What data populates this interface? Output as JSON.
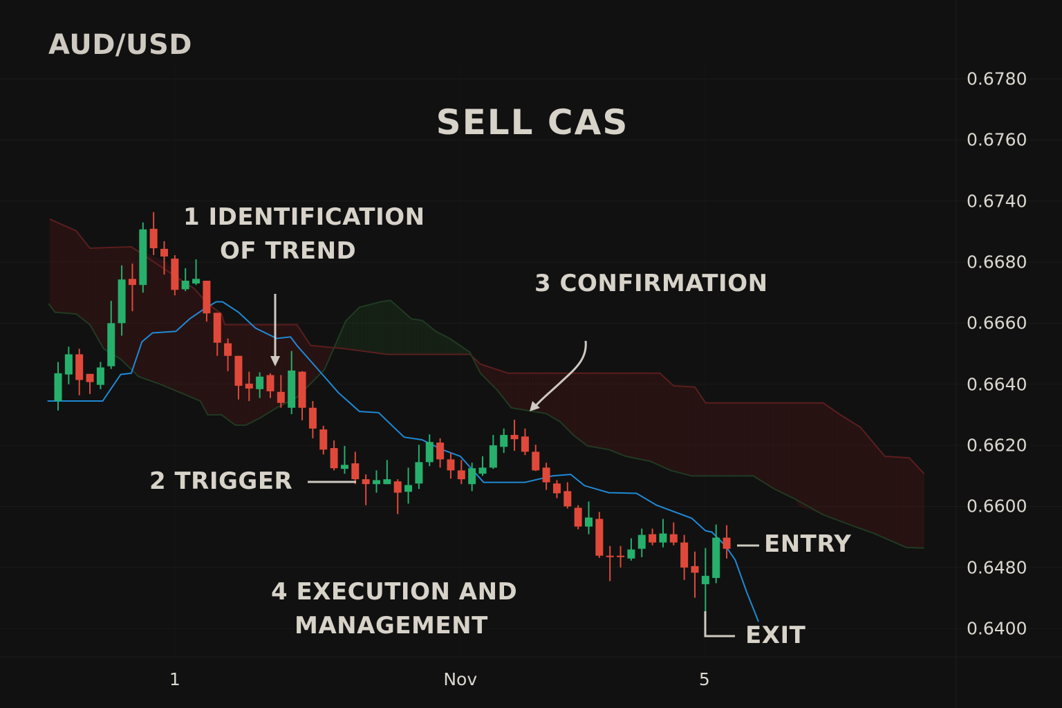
{
  "header": {
    "symbol": "AUD/USD",
    "headline": "SELL CAS"
  },
  "annotations": {
    "identification_line1": "1 IDENTIFICATION",
    "identification_line2": "OF TREND",
    "trigger": "2  TRIGGER",
    "confirmation": "3  CONFIRMATION",
    "execution_line1": "4  EXECUTION AND",
    "execution_line2": "MANAGEMENT",
    "entry": "ENTRY",
    "exit": "EXIT"
  },
  "colors": {
    "background": "#111111",
    "bullish": "#26b06c",
    "bearish": "#e0493a",
    "baseline": "#1f8ad6",
    "cloud_upper_line": "#5c1e1e",
    "cloud_lower_line": "#203b22",
    "text": "#d4cfc5"
  },
  "chart_data": {
    "type": "candlestick",
    "title": "AUD/USD",
    "y_axis": {
      "position": "right",
      "tick_labels": [
        "0.6780",
        "0.6760",
        "0.6740",
        "0.6680",
        "0.6660",
        "0.6640",
        "0.6620",
        "0.6600",
        "0.6480",
        "0.6400"
      ]
    },
    "x_axis": {
      "tick_labels": [
        {
          "label": "1",
          "index": 11
        },
        {
          "label": "Nov",
          "index": 37.9
        },
        {
          "label": "5",
          "index": 60.9
        }
      ]
    },
    "grid": true,
    "candles_ohlc": [
      [
        0.66345,
        0.66473,
        0.66314,
        0.66436
      ],
      [
        0.66432,
        0.66523,
        0.664,
        0.66498
      ],
      [
        0.66498,
        0.66516,
        0.66364,
        0.66414
      ],
      [
        0.66434,
        0.66434,
        0.66368,
        0.66407
      ],
      [
        0.66398,
        0.66473,
        0.66384,
        0.66455
      ],
      [
        0.66459,
        0.66673,
        0.6645,
        0.666
      ],
      [
        0.666,
        0.66789,
        0.66559,
        0.66743
      ],
      [
        0.66745,
        0.66795,
        0.66639,
        0.66725
      ],
      [
        0.66725,
        0.67189,
        0.667,
        0.67121
      ],
      [
        0.67127,
        0.67291,
        0.66868,
        0.66936
      ],
      [
        0.6693,
        0.67005,
        0.66759,
        0.66855
      ],
      [
        0.66834,
        0.66868,
        0.66691,
        0.66709
      ],
      [
        0.66711,
        0.6678,
        0.66705,
        0.66739
      ],
      [
        0.6673,
        0.66827,
        0.66725,
        0.66745
      ],
      [
        0.66739,
        0.66739,
        0.66605,
        0.66632
      ],
      [
        0.66634,
        0.66634,
        0.66493,
        0.66536
      ],
      [
        0.66534,
        0.6655,
        0.66443,
        0.66493
      ],
      [
        0.66493,
        0.66493,
        0.6635,
        0.66395
      ],
      [
        0.66402,
        0.66441,
        0.66345,
        0.66386
      ],
      [
        0.66384,
        0.66439,
        0.66355,
        0.66425
      ],
      [
        0.6643,
        0.66436,
        0.66355,
        0.66377
      ],
      [
        0.66375,
        0.6643,
        0.66323,
        0.66339
      ],
      [
        0.66323,
        0.66509,
        0.66302,
        0.66445
      ],
      [
        0.66441,
        0.66443,
        0.66282,
        0.66323
      ],
      [
        0.66323,
        0.66345,
        0.66223,
        0.66255
      ],
      [
        0.66252,
        0.66264,
        0.6617,
        0.66186
      ],
      [
        0.66191,
        0.66216,
        0.66118,
        0.66125
      ],
      [
        0.66123,
        0.66198,
        0.66107,
        0.66136
      ],
      [
        0.66141,
        0.66179,
        0.66073,
        0.66089
      ],
      [
        0.66089,
        0.66105,
        0.66004,
        0.66073
      ],
      [
        0.66073,
        0.66118,
        0.66045,
        0.66086
      ],
      [
        0.66073,
        0.66152,
        0.66073,
        0.66089
      ],
      [
        0.66082,
        0.66089,
        0.6585,
        0.66045
      ],
      [
        0.66048,
        0.66127,
        0.66009,
        0.6607
      ],
      [
        0.66075,
        0.66202,
        0.66057,
        0.66145
      ],
      [
        0.66145,
        0.66236,
        0.66132,
        0.66211
      ],
      [
        0.66209,
        0.66223,
        0.66127,
        0.66154
      ],
      [
        0.66154,
        0.66175,
        0.66091,
        0.66118
      ],
      [
        0.66118,
        0.66152,
        0.66073,
        0.66089
      ],
      [
        0.66073,
        0.66143,
        0.6605,
        0.66125
      ],
      [
        0.66107,
        0.66164,
        0.661,
        0.66127
      ],
      [
        0.66127,
        0.66234,
        0.66123,
        0.662
      ],
      [
        0.66195,
        0.66255,
        0.66175,
        0.66234
      ],
      [
        0.66234,
        0.66284,
        0.66182,
        0.6622
      ],
      [
        0.66229,
        0.66255,
        0.66168,
        0.66179
      ],
      [
        0.66179,
        0.66202,
        0.66116,
        0.66118
      ],
      [
        0.66127,
        0.66143,
        0.66054,
        0.66079
      ],
      [
        0.66075,
        0.66086,
        0.66027,
        0.66043
      ],
      [
        0.6605,
        0.66079,
        0.65959,
        0.66
      ],
      [
        0.65973,
        0.66004,
        0.6555,
        0.65604
      ],
      [
        0.65604,
        0.66016,
        0.65454,
        0.65782
      ],
      [
        0.65755,
        0.65891,
        0.64991,
        0.65032
      ],
      [
        0.65032,
        0.65223,
        0.64622,
        0.65004
      ],
      [
        0.65032,
        0.65223,
        0.648,
        0.65004
      ],
      [
        0.64977,
        0.65373,
        0.64936,
        0.65154
      ],
      [
        0.65168,
        0.65564,
        0.65004,
        0.65441
      ],
      [
        0.65454,
        0.65564,
        0.65236,
        0.65291
      ],
      [
        0.65291,
        0.65755,
        0.65195,
        0.65468
      ],
      [
        0.65454,
        0.65686,
        0.65236,
        0.65291
      ],
      [
        0.65291,
        0.65441,
        0.64636,
        0.648
      ],
      [
        0.64827,
        0.65113,
        0.64404,
        0.64732
      ],
      [
        0.64581,
        0.65182,
        0.63995,
        0.64691
      ],
      [
        0.64663,
        0.65645,
        0.64595,
        0.65386
      ],
      [
        0.65386,
        0.65632,
        0.64977,
        0.65168
      ]
    ],
    "baseline_line": [
      [
        -1.0,
        0.66345
      ],
      [
        4.2,
        0.66345
      ],
      [
        5.9,
        0.66432
      ],
      [
        6.9,
        0.66436
      ],
      [
        7.9,
        0.66539
      ],
      [
        8.9,
        0.66568
      ],
      [
        11.1,
        0.66573
      ],
      [
        12.4,
        0.66614
      ],
      [
        13.7,
        0.66645
      ],
      [
        14.9,
        0.6667
      ],
      [
        15.5,
        0.6667
      ],
      [
        17.0,
        0.66636
      ],
      [
        18.6,
        0.66584
      ],
      [
        20.6,
        0.6655
      ],
      [
        21.9,
        0.66555
      ],
      [
        22.5,
        0.66527
      ],
      [
        24.5,
        0.66448
      ],
      [
        26.4,
        0.66373
      ],
      [
        28.4,
        0.66311
      ],
      [
        30.2,
        0.66307
      ],
      [
        32.6,
        0.66227
      ],
      [
        34.3,
        0.66218
      ],
      [
        36.2,
        0.66186
      ],
      [
        37.9,
        0.66164
      ],
      [
        40.1,
        0.66079
      ],
      [
        44.0,
        0.66079
      ],
      [
        46.6,
        0.661
      ],
      [
        48.3,
        0.66105
      ],
      [
        49.6,
        0.66068
      ],
      [
        51.9,
        0.66045
      ],
      [
        54.5,
        0.66043
      ],
      [
        56.4,
        0.66004
      ],
      [
        59.7,
        0.65768
      ],
      [
        61.0,
        0.65523
      ],
      [
        61.6,
        0.65495
      ],
      [
        62.9,
        0.65223
      ],
      [
        63.8,
        0.6495
      ],
      [
        64.9,
        0.64472
      ],
      [
        66.0,
        0.6409
      ]
    ],
    "cloud_upper_line": [
      [
        -0.8,
        0.67223
      ],
      [
        1.7,
        0.67107
      ],
      [
        3.0,
        0.66936
      ],
      [
        6.9,
        0.6695
      ],
      [
        11.5,
        0.66743
      ],
      [
        12.8,
        0.66714
      ],
      [
        14.1,
        0.66664
      ],
      [
        15.4,
        0.6663
      ],
      [
        15.7,
        0.66595
      ],
      [
        22.5,
        0.66595
      ],
      [
        23.8,
        0.66527
      ],
      [
        27.1,
        0.66516
      ],
      [
        31.0,
        0.66498
      ],
      [
        38.8,
        0.66498
      ],
      [
        39.8,
        0.66466
      ],
      [
        42.4,
        0.66436
      ],
      [
        56.7,
        0.66436
      ],
      [
        58.0,
        0.66395
      ],
      [
        60.0,
        0.66391
      ],
      [
        61.0,
        0.66339
      ],
      [
        72.1,
        0.66339
      ],
      [
        73.7,
        0.663
      ],
      [
        75.6,
        0.66259
      ],
      [
        77.9,
        0.66164
      ],
      [
        80.2,
        0.66159
      ],
      [
        81.6,
        0.66107
      ]
    ],
    "cloud_lower_line": [
      [
        -0.9,
        0.66664
      ],
      [
        -0.3,
        0.66636
      ],
      [
        1.7,
        0.6663
      ],
      [
        3.0,
        0.66595
      ],
      [
        4.3,
        0.66516
      ],
      [
        5.9,
        0.66482
      ],
      [
        7.6,
        0.66425
      ],
      [
        9.5,
        0.66402
      ],
      [
        11.5,
        0.66373
      ],
      [
        13.4,
        0.66345
      ],
      [
        14.1,
        0.663
      ],
      [
        15.4,
        0.663
      ],
      [
        16.7,
        0.66266
      ],
      [
        17.7,
        0.66266
      ],
      [
        19.0,
        0.66289
      ],
      [
        20.6,
        0.66323
      ],
      [
        22.5,
        0.66357
      ],
      [
        25.1,
        0.66448
      ],
      [
        27.1,
        0.66607
      ],
      [
        28.4,
        0.66652
      ],
      [
        30.4,
        0.6667
      ],
      [
        31.3,
        0.66675
      ],
      [
        33.3,
        0.66614
      ],
      [
        34.3,
        0.66609
      ],
      [
        35.6,
        0.66573
      ],
      [
        36.9,
        0.6655
      ],
      [
        38.8,
        0.66505
      ],
      [
        39.8,
        0.66436
      ],
      [
        41.4,
        0.6638
      ],
      [
        42.7,
        0.66323
      ],
      [
        46.0,
        0.66304
      ],
      [
        47.3,
        0.66277
      ],
      [
        48.6,
        0.66232
      ],
      [
        49.9,
        0.66198
      ],
      [
        51.9,
        0.66186
      ],
      [
        53.5,
        0.66164
      ],
      [
        55.8,
        0.66148
      ],
      [
        57.7,
        0.66118
      ],
      [
        59.7,
        0.661
      ],
      [
        65.5,
        0.661
      ],
      [
        67.5,
        0.66057
      ],
      [
        69.4,
        0.66025
      ],
      [
        72.1,
        0.65836
      ],
      [
        74.7,
        0.65632
      ],
      [
        76.9,
        0.65468
      ],
      [
        79.9,
        0.65195
      ],
      [
        81.6,
        0.65182
      ]
    ]
  }
}
